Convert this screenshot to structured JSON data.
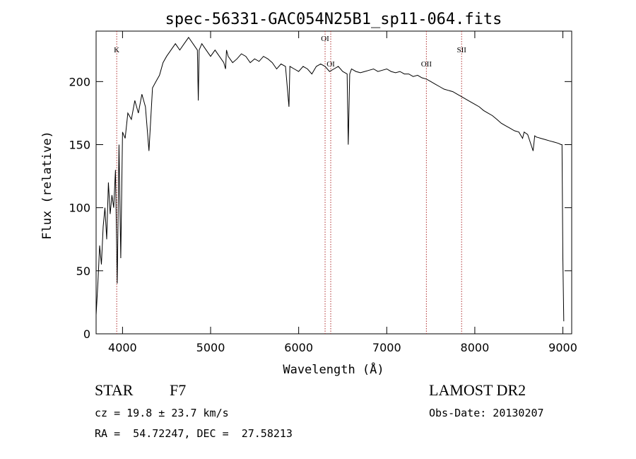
{
  "chart_data": {
    "type": "line",
    "title": "spec-56331-GAC054N25B1_sp11-064.fits",
    "xlabel": "Wavelength (Å)",
    "ylabel": "Flux (relative)",
    "xlim": [
      3700,
      9100
    ],
    "ylim": [
      0,
      240
    ],
    "x_ticks": [
      4000,
      5000,
      6000,
      7000,
      8000,
      9000
    ],
    "y_ticks": [
      0,
      50,
      100,
      150,
      200
    ],
    "grid": false,
    "series": [
      {
        "x": [
          3700,
          3720,
          3740,
          3760,
          3780,
          3800,
          3820,
          3840,
          3860,
          3880,
          3900,
          3920,
          3940,
          3960,
          3980,
          4000,
          4030,
          4060,
          4100,
          4140,
          4180,
          4220,
          4260,
          4300,
          4340,
          4380,
          4420,
          4460,
          4500,
          4550,
          4600,
          4650,
          4700,
          4750,
          4800,
          4850,
          4860,
          4870,
          4900,
          4950,
          5000,
          5050,
          5100,
          5150,
          5170,
          5180,
          5200,
          5250,
          5300,
          5350,
          5400,
          5450,
          5500,
          5550,
          5600,
          5650,
          5700,
          5750,
          5800,
          5850,
          5890,
          5900,
          5950,
          6000,
          6050,
          6100,
          6150,
          6200,
          6250,
          6300,
          6350,
          6400,
          6450,
          6500,
          6550,
          6563,
          6580,
          6600,
          6650,
          6700,
          6750,
          6800,
          6850,
          6900,
          6950,
          7000,
          7050,
          7100,
          7150,
          7200,
          7250,
          7300,
          7350,
          7400,
          7450,
          7500,
          7550,
          7600,
          7650,
          7700,
          7750,
          7800,
          7850,
          7900,
          7950,
          8000,
          8050,
          8100,
          8150,
          8200,
          8250,
          8300,
          8350,
          8400,
          8450,
          8500,
          8542,
          8560,
          8600,
          8662,
          8680,
          8700,
          8750,
          8800,
          8850,
          8900,
          8950,
          8980,
          8990,
          9000,
          9010
        ],
        "y": [
          15,
          40,
          70,
          55,
          85,
          100,
          75,
          120,
          95,
          110,
          100,
          130,
          40,
          150,
          60,
          160,
          155,
          175,
          170,
          185,
          175,
          190,
          180,
          145,
          195,
          200,
          205,
          215,
          220,
          225,
          230,
          225,
          230,
          235,
          230,
          225,
          185,
          225,
          230,
          225,
          220,
          225,
          220,
          215,
          210,
          225,
          220,
          215,
          218,
          222,
          220,
          215,
          218,
          216,
          220,
          218,
          215,
          210,
          214,
          212,
          180,
          212,
          210,
          208,
          212,
          210,
          206,
          212,
          214,
          212,
          208,
          210,
          212,
          208,
          206,
          150,
          206,
          210,
          208,
          207,
          208,
          209,
          210,
          208,
          209,
          210,
          208,
          207,
          208,
          206,
          206,
          204,
          205,
          203,
          202,
          200,
          198,
          196,
          194,
          193,
          192,
          190,
          188,
          186,
          184,
          182,
          180,
          177,
          175,
          173,
          170,
          167,
          165,
          163,
          161,
          160,
          155,
          160,
          158,
          145,
          157,
          156,
          155,
          154,
          153,
          152,
          151,
          150,
          150,
          60,
          10
        ]
      }
    ],
    "line_markers": [
      {
        "label": "K",
        "x": 3934
      },
      {
        "label": "OI",
        "x": 6300
      },
      {
        "label": "OI",
        "x": 6364
      },
      {
        "label": "OII",
        "x": 7450
      },
      {
        "label": "SII",
        "x": 7850
      }
    ]
  },
  "info": {
    "object_type": "STAR",
    "subclass": "F7",
    "survey": "LAMOST DR2",
    "cz": "cz = 19.8 ± 23.7 km/s",
    "obs_date": "Obs-Date: 20130207",
    "coords": "RA =  54.72247, DEC =  27.58213"
  }
}
